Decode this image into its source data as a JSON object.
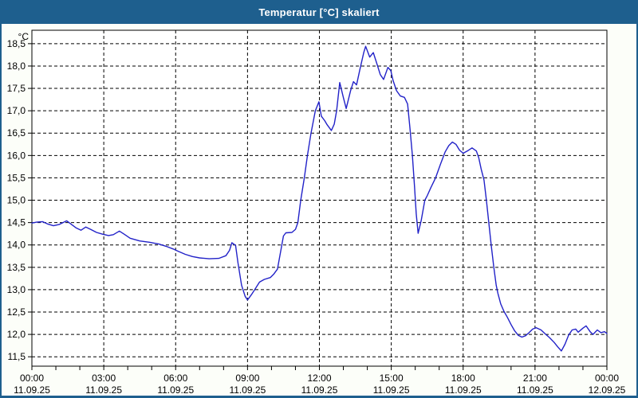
{
  "window": {
    "title": "Temperatur [°C] skaliert",
    "title_bar_color": "#1e5f8e",
    "panel_background": "#fcfef9"
  },
  "chart_data": {
    "type": "line",
    "title": "Temperatur [°C] skaliert",
    "ylabel": "°C",
    "xlabel": "",
    "grid": true,
    "legend": "none",
    "plot_background": "#ffffff",
    "line_color": "#2222c8",
    "grid_color": "#000000",
    "ylim": [
      11.29,
      18.8
    ],
    "xlim_hours": [
      0,
      24
    ],
    "x_minor_tick_hours": 1,
    "y_ticks": [
      {
        "value": 18.5,
        "label": "18,5"
      },
      {
        "value": 18.0,
        "label": "18,0"
      },
      {
        "value": 17.5,
        "label": "17,5"
      },
      {
        "value": 17.0,
        "label": "17,0"
      },
      {
        "value": 16.5,
        "label": "16,5"
      },
      {
        "value": 16.0,
        "label": "16,0"
      },
      {
        "value": 15.5,
        "label": "15,5"
      },
      {
        "value": 15.0,
        "label": "15,0"
      },
      {
        "value": 14.5,
        "label": "14,5"
      },
      {
        "value": 14.0,
        "label": "14,0"
      },
      {
        "value": 13.5,
        "label": "13,5"
      },
      {
        "value": 13.0,
        "label": "13,0"
      },
      {
        "value": 12.5,
        "label": "12,5"
      },
      {
        "value": 12.0,
        "label": "12,0"
      },
      {
        "value": 11.5,
        "label": "11,5"
      }
    ],
    "x_ticks": [
      {
        "hour": 0,
        "time": "00:00",
        "date": "11.09.25",
        "grid": false
      },
      {
        "hour": 3,
        "time": "03:00",
        "date": "11.09.25",
        "grid": true
      },
      {
        "hour": 6,
        "time": "06:00",
        "date": "11.09.25",
        "grid": true
      },
      {
        "hour": 9,
        "time": "09:00",
        "date": "11.09.25",
        "grid": true
      },
      {
        "hour": 12,
        "time": "12:00",
        "date": "11.09.25",
        "grid": true
      },
      {
        "hour": 15,
        "time": "15:00",
        "date": "11.09.25",
        "grid": true
      },
      {
        "hour": 18,
        "time": "18:00",
        "date": "11.09.25",
        "grid": true
      },
      {
        "hour": 21,
        "time": "21:00",
        "date": "11.09.25",
        "grid": true
      },
      {
        "hour": 24,
        "time": "00:00",
        "date": "12.09.25",
        "grid": false
      }
    ],
    "series": [
      {
        "name": "Temperatur",
        "points": [
          [
            0.0,
            14.49
          ],
          [
            0.2,
            14.51
          ],
          [
            0.45,
            14.52
          ],
          [
            0.65,
            14.47
          ],
          [
            0.9,
            14.43
          ],
          [
            1.15,
            14.46
          ],
          [
            1.45,
            14.54
          ],
          [
            1.65,
            14.46
          ],
          [
            1.85,
            14.38
          ],
          [
            2.05,
            14.33
          ],
          [
            2.25,
            14.4
          ],
          [
            2.45,
            14.35
          ],
          [
            2.7,
            14.28
          ],
          [
            2.95,
            14.24
          ],
          [
            3.2,
            14.21
          ],
          [
            3.4,
            14.23
          ],
          [
            3.65,
            14.31
          ],
          [
            3.85,
            14.24
          ],
          [
            4.1,
            14.15
          ],
          [
            4.5,
            14.09
          ],
          [
            4.9,
            14.06
          ],
          [
            5.3,
            14.02
          ],
          [
            5.6,
            13.97
          ],
          [
            5.9,
            13.91
          ],
          [
            6.1,
            13.86
          ],
          [
            6.4,
            13.79
          ],
          [
            6.7,
            13.74
          ],
          [
            7.0,
            13.71
          ],
          [
            7.4,
            13.69
          ],
          [
            7.8,
            13.7
          ],
          [
            8.1,
            13.76
          ],
          [
            8.25,
            13.88
          ],
          [
            8.35,
            14.05
          ],
          [
            8.5,
            13.99
          ],
          [
            8.6,
            13.6
          ],
          [
            8.75,
            13.1
          ],
          [
            8.9,
            12.85
          ],
          [
            9.0,
            12.77
          ],
          [
            9.15,
            12.88
          ],
          [
            9.3,
            13.0
          ],
          [
            9.5,
            13.17
          ],
          [
            9.7,
            13.23
          ],
          [
            9.95,
            13.27
          ],
          [
            10.1,
            13.35
          ],
          [
            10.25,
            13.46
          ],
          [
            10.4,
            13.9
          ],
          [
            10.5,
            14.2
          ],
          [
            10.6,
            14.27
          ],
          [
            10.85,
            14.28
          ],
          [
            11.0,
            14.35
          ],
          [
            11.1,
            14.5
          ],
          [
            11.22,
            15.0
          ],
          [
            11.37,
            15.5
          ],
          [
            11.5,
            16.0
          ],
          [
            11.65,
            16.5
          ],
          [
            11.83,
            17.0
          ],
          [
            11.98,
            17.2
          ],
          [
            12.08,
            16.88
          ],
          [
            12.22,
            16.78
          ],
          [
            12.32,
            16.69
          ],
          [
            12.5,
            16.56
          ],
          [
            12.62,
            16.7
          ],
          [
            12.72,
            17.0
          ],
          [
            12.85,
            17.63
          ],
          [
            13.0,
            17.3
          ],
          [
            13.12,
            17.05
          ],
          [
            13.3,
            17.45
          ],
          [
            13.42,
            17.65
          ],
          [
            13.55,
            17.58
          ],
          [
            13.7,
            17.95
          ],
          [
            13.85,
            18.3
          ],
          [
            13.93,
            18.44
          ],
          [
            14.1,
            18.2
          ],
          [
            14.25,
            18.3
          ],
          [
            14.4,
            18.05
          ],
          [
            14.54,
            17.81
          ],
          [
            14.68,
            17.7
          ],
          [
            14.86,
            17.97
          ],
          [
            14.98,
            17.9
          ],
          [
            15.08,
            17.67
          ],
          [
            15.22,
            17.45
          ],
          [
            15.38,
            17.33
          ],
          [
            15.55,
            17.3
          ],
          [
            15.68,
            17.15
          ],
          [
            15.78,
            16.6
          ],
          [
            15.88,
            16.0
          ],
          [
            15.97,
            15.3
          ],
          [
            16.04,
            14.7
          ],
          [
            16.12,
            14.26
          ],
          [
            16.25,
            14.55
          ],
          [
            16.4,
            15.0
          ],
          [
            16.5,
            15.1
          ],
          [
            16.65,
            15.28
          ],
          [
            16.85,
            15.5
          ],
          [
            17.05,
            15.8
          ],
          [
            17.25,
            16.08
          ],
          [
            17.4,
            16.22
          ],
          [
            17.55,
            16.3
          ],
          [
            17.7,
            16.25
          ],
          [
            17.85,
            16.12
          ],
          [
            18.0,
            16.05
          ],
          [
            18.2,
            16.11
          ],
          [
            18.37,
            16.17
          ],
          [
            18.55,
            16.1
          ],
          [
            18.65,
            15.95
          ],
          [
            18.75,
            15.7
          ],
          [
            18.87,
            15.45
          ],
          [
            18.97,
            15.0
          ],
          [
            19.07,
            14.5
          ],
          [
            19.17,
            14.0
          ],
          [
            19.28,
            13.5
          ],
          [
            19.38,
            13.1
          ],
          [
            19.45,
            12.92
          ],
          [
            19.57,
            12.68
          ],
          [
            19.7,
            12.52
          ],
          [
            19.85,
            12.38
          ],
          [
            20.0,
            12.22
          ],
          [
            20.15,
            12.08
          ],
          [
            20.3,
            11.98
          ],
          [
            20.45,
            11.94
          ],
          [
            20.6,
            11.97
          ],
          [
            20.75,
            12.04
          ],
          [
            20.9,
            12.12
          ],
          [
            21.05,
            12.15
          ],
          [
            21.25,
            12.1
          ],
          [
            21.45,
            12.0
          ],
          [
            21.6,
            11.93
          ],
          [
            21.8,
            11.82
          ],
          [
            21.95,
            11.72
          ],
          [
            22.1,
            11.63
          ],
          [
            22.25,
            11.78
          ],
          [
            22.4,
            11.98
          ],
          [
            22.55,
            12.1
          ],
          [
            22.7,
            12.12
          ],
          [
            22.8,
            12.05
          ],
          [
            23.0,
            12.14
          ],
          [
            23.13,
            12.19
          ],
          [
            23.3,
            12.06
          ],
          [
            23.42,
            12.0
          ],
          [
            23.6,
            12.1
          ],
          [
            23.75,
            12.04
          ],
          [
            23.9,
            12.06
          ],
          [
            24.0,
            12.02
          ]
        ]
      }
    ]
  }
}
